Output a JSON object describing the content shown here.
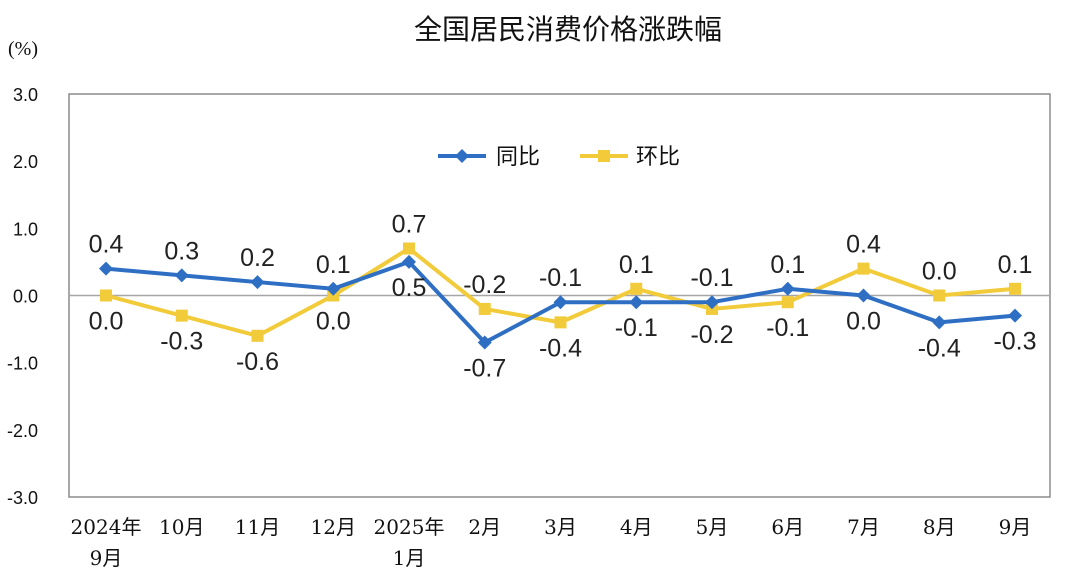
{
  "chart_data": {
    "type": "line",
    "title": "全国居民消费价格涨跌幅",
    "unit_label": "(%)",
    "categories": [
      [
        "2024年",
        "9月"
      ],
      [
        "10月"
      ],
      [
        "11月"
      ],
      [
        "12月"
      ],
      [
        "2025年",
        "1月"
      ],
      [
        "2月"
      ],
      [
        "3月"
      ],
      [
        "4月"
      ],
      [
        "5月"
      ],
      [
        "6月"
      ],
      [
        "7月"
      ],
      [
        "8月"
      ],
      [
        "9月"
      ]
    ],
    "ylim": [
      -3.0,
      3.0
    ],
    "yticks": [
      "3.0",
      "2.0",
      "1.0",
      "0.0",
      "-1.0",
      "-2.0",
      "-3.0"
    ],
    "legend_position": "top",
    "series": [
      {
        "name": "同比",
        "color": "#2E6FC4",
        "marker": "diamond",
        "values": [
          0.4,
          0.3,
          0.2,
          0.1,
          0.5,
          -0.7,
          -0.1,
          -0.1,
          -0.1,
          0.1,
          0.0,
          -0.4,
          -0.3
        ],
        "labels": [
          "0.4",
          "0.3",
          "0.2",
          "0.1",
          "0.5",
          "-0.7",
          "-0.1",
          "-0.1",
          "-0.1",
          "0.1",
          "0.0",
          "-0.4",
          "-0.3"
        ]
      },
      {
        "name": "环比",
        "color": "#F2CB3A",
        "marker": "square",
        "values": [
          0.0,
          -0.3,
          -0.6,
          0.0,
          0.7,
          -0.2,
          -0.4,
          0.1,
          -0.2,
          -0.1,
          0.4,
          0.0,
          0.1
        ],
        "labels": [
          "0.0",
          "-0.3",
          "-0.6",
          "0.0",
          "0.7",
          "-0.2",
          "-0.4",
          "0.1",
          "-0.2",
          "-0.1",
          "0.4",
          "0.0",
          "0.1"
        ]
      }
    ]
  }
}
